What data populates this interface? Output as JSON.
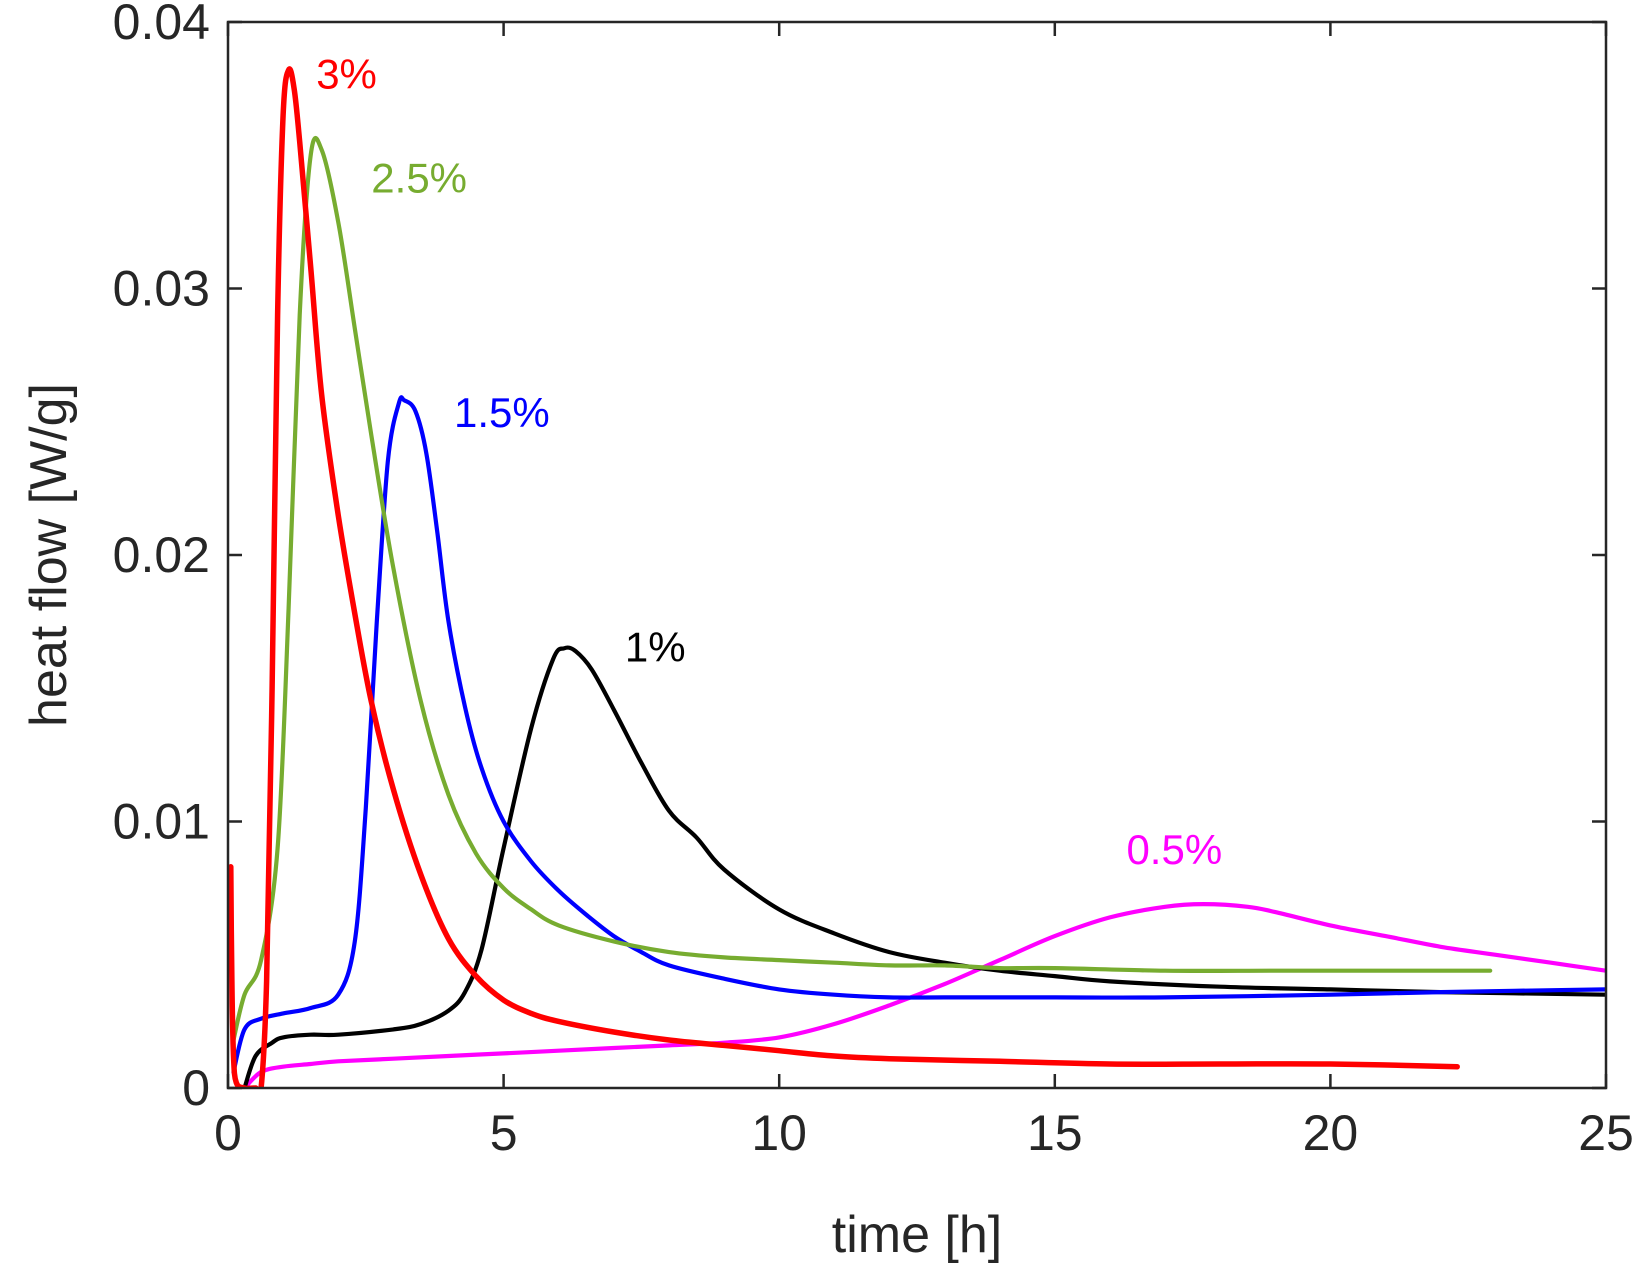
{
  "chart_data": {
    "type": "line",
    "title": "",
    "xlabel": "time [h]",
    "ylabel": "heat flow [W/g]",
    "xlim": [
      0,
      25
    ],
    "ylim": [
      0,
      0.04
    ],
    "xticks": [
      0,
      5,
      10,
      15,
      20,
      25
    ],
    "xtick_labels": [
      "0",
      "5",
      "10",
      "15",
      "20",
      "25"
    ],
    "yticks": [
      0,
      0.01,
      0.02,
      0.03,
      0.04
    ],
    "ytick_labels": [
      "0",
      "0.01",
      "0.02",
      "0.03",
      "0.04"
    ],
    "grid": false,
    "legend": "inline labels near each peak",
    "series": [
      {
        "name": "0.5%",
        "label": "0.5%",
        "color": "#ff00ff",
        "label_at": [
          16.3,
          0.0084
        ],
        "x": [
          0.3,
          0.6,
          1,
          1.5,
          2,
          3,
          4,
          5,
          6,
          7,
          8,
          9,
          10,
          11,
          12,
          13,
          14,
          15,
          16,
          17,
          17.7,
          18.5,
          19,
          20,
          21,
          22,
          23,
          24,
          25
        ],
        "y": [
          0.0,
          0.0006,
          0.0008,
          0.0009,
          0.001,
          0.0011,
          0.0012,
          0.0013,
          0.0014,
          0.0015,
          0.0016,
          0.0017,
          0.0019,
          0.0024,
          0.0031,
          0.0039,
          0.0048,
          0.0057,
          0.0064,
          0.0068,
          0.0069,
          0.0068,
          0.0066,
          0.0061,
          0.0057,
          0.0053,
          0.005,
          0.0047,
          0.0044
        ]
      },
      {
        "name": "1%",
        "label": "1%",
        "color": "#000000",
        "label_at": [
          7.2,
          0.016
        ],
        "x": [
          0.3,
          0.5,
          0.8,
          1,
          1.5,
          2,
          3,
          3.5,
          4,
          4.3,
          4.6,
          5,
          5.5,
          5.9,
          6.1,
          6.3,
          6.6,
          7,
          7.5,
          8,
          8.5,
          9,
          10,
          11,
          12,
          13,
          14,
          15,
          16,
          18,
          20,
          22,
          25
        ],
        "y": [
          0.0,
          0.0012,
          0.0017,
          0.0019,
          0.002,
          0.002,
          0.0022,
          0.0024,
          0.0029,
          0.0036,
          0.0052,
          0.009,
          0.0135,
          0.0161,
          0.0165,
          0.0164,
          0.0157,
          0.0142,
          0.0122,
          0.0104,
          0.0094,
          0.0082,
          0.0067,
          0.0058,
          0.0051,
          0.0047,
          0.0044,
          0.0042,
          0.004,
          0.0038,
          0.0037,
          0.0036,
          0.0035
        ]
      },
      {
        "name": "1.5%",
        "label": "1.5%",
        "color": "#0000ff",
        "label_at": [
          4.1,
          0.0248
        ],
        "x": [
          0.1,
          0.3,
          0.6,
          1,
          1.5,
          2,
          2.3,
          2.5,
          2.7,
          2.9,
          3.1,
          3.2,
          3.4,
          3.6,
          3.8,
          4,
          4.3,
          4.6,
          5,
          5.5,
          6,
          6.5,
          7,
          7.5,
          8,
          9,
          10,
          11,
          12,
          13,
          14,
          15,
          17,
          20,
          22,
          25
        ],
        "y": [
          0.0006,
          0.0022,
          0.0026,
          0.0028,
          0.003,
          0.0035,
          0.0055,
          0.0105,
          0.0175,
          0.0235,
          0.0257,
          0.0258,
          0.0254,
          0.0238,
          0.0208,
          0.0175,
          0.0143,
          0.012,
          0.01,
          0.0085,
          0.0074,
          0.0065,
          0.0057,
          0.0051,
          0.0046,
          0.0041,
          0.0037,
          0.0035,
          0.0034,
          0.0034,
          0.0034,
          0.0034,
          0.0034,
          0.0035,
          0.0036,
          0.0037
        ]
      },
      {
        "name": "2.5%",
        "label": "2.5%",
        "color": "#77ac30",
        "label_at": [
          2.6,
          0.0336
        ],
        "x": [
          0.1,
          0.3,
          0.6,
          0.9,
          1.1,
          1.3,
          1.5,
          1.7,
          2,
          2.3,
          2.6,
          3,
          3.5,
          4,
          4.5,
          5,
          5.5,
          6,
          7,
          8,
          9,
          10,
          11,
          12,
          13,
          14,
          15,
          17,
          19,
          21,
          22.9
        ],
        "y": [
          0.0018,
          0.0035,
          0.0048,
          0.009,
          0.018,
          0.029,
          0.035,
          0.0352,
          0.0325,
          0.0285,
          0.0245,
          0.0195,
          0.0145,
          0.011,
          0.0088,
          0.0075,
          0.0067,
          0.0061,
          0.0055,
          0.0051,
          0.0049,
          0.0048,
          0.0047,
          0.0046,
          0.0046,
          0.0045,
          0.0045,
          0.0044,
          0.0044,
          0.0044,
          0.0044
        ]
      },
      {
        "name": "3%",
        "label": "3%",
        "color": "#ff0000",
        "label_at": [
          1.6,
          0.0375
        ],
        "x": [
          0.05,
          0.07,
          0.1,
          0.15,
          0.3,
          0.5,
          0.6,
          0.7,
          0.8,
          0.9,
          1,
          1.1,
          1.2,
          1.3,
          1.5,
          1.7,
          2,
          2.3,
          2.6,
          3,
          3.5,
          4,
          4.5,
          5,
          5.5,
          6,
          7,
          8,
          9,
          10,
          11,
          12,
          14,
          16,
          18,
          20,
          22.3
        ],
        "y": [
          0.0083,
          0.004,
          0.0012,
          0.0002,
          0.0,
          0.0,
          0.0,
          0.004,
          0.015,
          0.029,
          0.0365,
          0.0382,
          0.0375,
          0.0355,
          0.0308,
          0.026,
          0.0215,
          0.0178,
          0.0145,
          0.0112,
          0.008,
          0.0056,
          0.0042,
          0.0033,
          0.0028,
          0.0025,
          0.0021,
          0.0018,
          0.0016,
          0.0014,
          0.0012,
          0.0011,
          0.001,
          0.0009,
          0.0009,
          0.0009,
          0.0008
        ]
      }
    ]
  }
}
